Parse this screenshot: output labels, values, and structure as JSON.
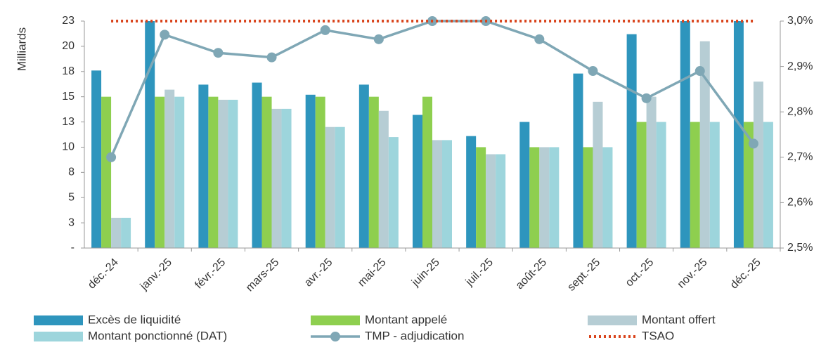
{
  "chart_data": {
    "type": "bar",
    "y_label": "Milliards",
    "categories": [
      "déc.-24",
      "janv.-25",
      "févr.-25",
      "mars-25",
      "avr.-25",
      "mai-25",
      "juin-25",
      "juil.-25",
      "août-25",
      "sept.-25",
      "oct.-25",
      "nov.-25",
      "déc.-25"
    ],
    "series": [
      {
        "name": "Excès de liquidité",
        "color": "#2e95bd",
        "values": [
          17.6,
          24,
          16.2,
          16.4,
          15.2,
          16.2,
          13.2,
          11.1,
          12.5,
          17.3,
          21.2,
          24,
          24
        ]
      },
      {
        "name": "Montant appelé",
        "color": "#8ecf4f",
        "values": [
          15,
          15,
          15,
          15,
          15,
          15,
          15,
          10,
          10,
          10,
          12.5,
          12.5,
          12.5
        ]
      },
      {
        "name": "Montant offert",
        "color": "#b6cdd4",
        "values": [
          3,
          15.7,
          14.7,
          13.8,
          12,
          13.6,
          10.7,
          9.3,
          10,
          14.5,
          15,
          20.5,
          16.5
        ]
      },
      {
        "name": "Montant ponctionné (DAT)",
        "color": "#9dd5dc",
        "values": [
          3,
          15,
          14.7,
          13.8,
          12,
          11,
          10.7,
          9.3,
          10,
          10,
          12.5,
          12.5,
          12.5
        ]
      },
      {
        "name": "TMP - adjudication",
        "color": "#7fa7b5",
        "axis": "y2",
        "style": "line-markers",
        "values": [
          2.7,
          2.97,
          2.93,
          2.92,
          2.98,
          2.96,
          3.0,
          3.0,
          2.96,
          2.89,
          2.83,
          2.89,
          2.73
        ]
      },
      {
        "name": "TSAO",
        "color": "#d9441c",
        "axis": "y2",
        "style": "dotted",
        "values": [
          3.0,
          3.0,
          3.0,
          3.0,
          3.0,
          3.0,
          3.0,
          3.0,
          3.0,
          3.0,
          3.0,
          3.0,
          3.0
        ]
      }
    ],
    "ylim": [
      0,
      22.5
    ],
    "yticks": [
      {
        "value": 0,
        "label": "-"
      },
      {
        "value": 2.5,
        "label": "3"
      },
      5,
      {
        "value": 7.5,
        "label": "8"
      },
      10,
      {
        "value": 12.5,
        "label": "13"
      },
      15,
      {
        "value": 17.5,
        "label": "18"
      },
      20,
      {
        "value": 22.5,
        "label": "23"
      }
    ],
    "y2lim": [
      2.5,
      3.0
    ],
    "y2ticks": [
      {
        "value": 2.5,
        "label": "2,5%"
      },
      {
        "value": 2.6,
        "label": "2,6%"
      },
      {
        "value": 2.7,
        "label": "2,7%"
      },
      {
        "value": 2.8,
        "label": "2,8%"
      },
      {
        "value": 2.9,
        "label": "2,9%"
      },
      {
        "value": 3.0,
        "label": "3,0%"
      }
    ],
    "grid": false,
    "legend": "bottom"
  }
}
